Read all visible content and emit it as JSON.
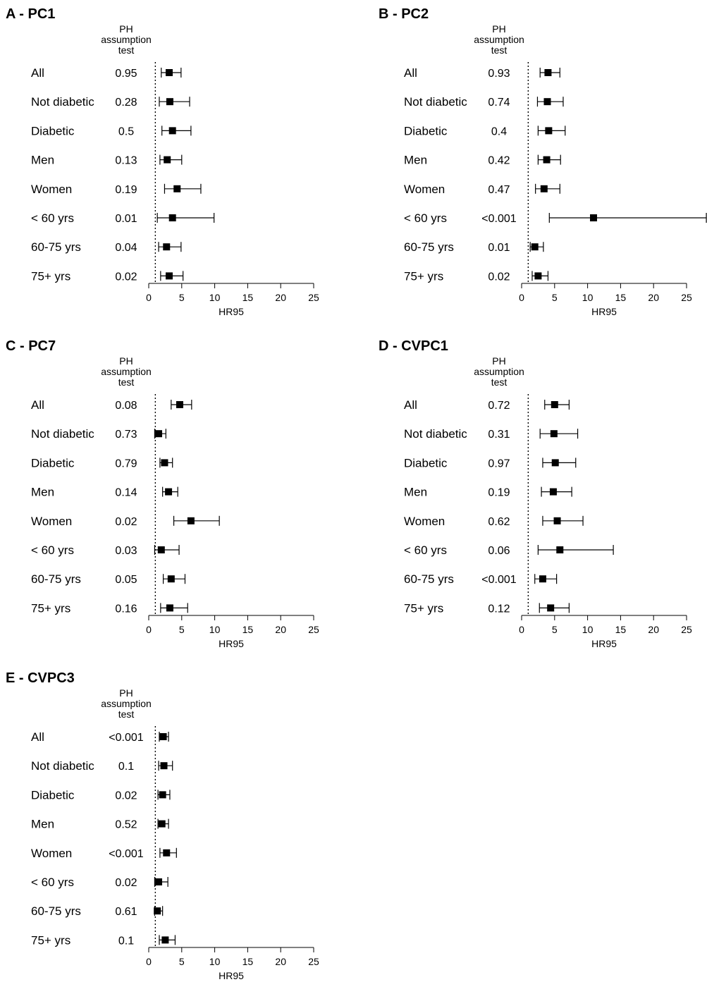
{
  "chart_data": [
    {
      "type": "forest",
      "title": "A - PC1",
      "pval_header": [
        "PH",
        "assumption",
        "test"
      ],
      "xlabel": "HR95",
      "xlim": [
        0,
        25
      ],
      "xticks": [
        0,
        5,
        10,
        15,
        20,
        25
      ],
      "ref_line": 1,
      "rows": [
        {
          "label": "All",
          "pval": "0.95",
          "hr": 3.1,
          "lo": 1.9,
          "hi": 4.9
        },
        {
          "label": "Not diabetic",
          "pval": "0.28",
          "hr": 3.2,
          "lo": 1.6,
          "hi": 6.2
        },
        {
          "label": "Diabetic",
          "pval": "0.5",
          "hr": 3.6,
          "lo": 2.0,
          "hi": 6.4
        },
        {
          "label": "Men",
          "pval": "0.13",
          "hr": 2.8,
          "lo": 1.7,
          "hi": 5.0
        },
        {
          "label": "Women",
          "pval": "0.19",
          "hr": 4.3,
          "lo": 2.4,
          "hi": 7.9
        },
        {
          "label": "< 60 yrs",
          "pval": "0.01",
          "hr": 3.6,
          "lo": 1.3,
          "hi": 9.9
        },
        {
          "label": "60-75 yrs",
          "pval": "0.04",
          "hr": 2.7,
          "lo": 1.5,
          "hi": 4.9
        },
        {
          "label": "75+ yrs",
          "pval": "0.02",
          "hr": 3.1,
          "lo": 1.8,
          "hi": 5.2
        }
      ]
    },
    {
      "type": "forest",
      "title": "B - PC2",
      "pval_header": [
        "PH",
        "assumption",
        "test"
      ],
      "xlabel": "HR95",
      "xlim": [
        0,
        25
      ],
      "xticks": [
        0,
        5,
        10,
        15,
        20,
        25
      ],
      "ref_line": 1,
      "rows": [
        {
          "label": "All",
          "pval": "0.93",
          "hr": 4.0,
          "lo": 2.8,
          "hi": 5.8
        },
        {
          "label": "Not diabetic",
          "pval": "0.74",
          "hr": 3.9,
          "lo": 2.4,
          "hi": 6.3
        },
        {
          "label": "Diabetic",
          "pval": "0.4",
          "hr": 4.1,
          "lo": 2.5,
          "hi": 6.6
        },
        {
          "label": "Men",
          "pval": "0.42",
          "hr": 3.8,
          "lo": 2.5,
          "hi": 5.9
        },
        {
          "label": "Women",
          "pval": "0.47",
          "hr": 3.4,
          "lo": 2.1,
          "hi": 5.8
        },
        {
          "label": "< 60 yrs",
          "pval": "<0.001",
          "hr": 10.9,
          "lo": 4.2,
          "hi": 28.0
        },
        {
          "label": "60-75 yrs",
          "pval": "0.01",
          "hr": 2.0,
          "lo": 1.3,
          "hi": 3.3
        },
        {
          "label": "75+ yrs",
          "pval": "0.02",
          "hr": 2.5,
          "lo": 1.6,
          "hi": 4.0
        }
      ]
    },
    {
      "type": "forest",
      "title": "C - PC7",
      "pval_header": [
        "PH",
        "assumption",
        "test"
      ],
      "xlabel": "HR95",
      "xlim": [
        0,
        25
      ],
      "xticks": [
        0,
        5,
        10,
        15,
        20,
        25
      ],
      "ref_line": 1,
      "rows": [
        {
          "label": "All",
          "pval": "0.08",
          "hr": 4.7,
          "lo": 3.4,
          "hi": 6.5
        },
        {
          "label": "Not diabetic",
          "pval": "0.73",
          "hr": 1.5,
          "lo": 0.9,
          "hi": 2.6
        },
        {
          "label": "Diabetic",
          "pval": "0.79",
          "hr": 2.4,
          "lo": 1.7,
          "hi": 3.6
        },
        {
          "label": "Men",
          "pval": "0.14",
          "hr": 3.0,
          "lo": 2.1,
          "hi": 4.4
        },
        {
          "label": "Women",
          "pval": "0.02",
          "hr": 6.4,
          "lo": 3.8,
          "hi": 10.7
        },
        {
          "label": "< 60 yrs",
          "pval": "0.03",
          "hr": 1.9,
          "lo": 0.9,
          "hi": 4.6
        },
        {
          "label": "60-75 yrs",
          "pval": "0.05",
          "hr": 3.4,
          "lo": 2.2,
          "hi": 5.5
        },
        {
          "label": "75+ yrs",
          "pval": "0.16",
          "hr": 3.2,
          "lo": 1.8,
          "hi": 5.9
        }
      ]
    },
    {
      "type": "forest",
      "title": "D - CVPC1",
      "pval_header": [
        "PH",
        "assumption",
        "test"
      ],
      "xlabel": "HR95",
      "xlim": [
        0,
        25
      ],
      "xticks": [
        0,
        5,
        10,
        15,
        20,
        25
      ],
      "ref_line": 1,
      "rows": [
        {
          "label": "All",
          "pval": "0.72",
          "hr": 5.0,
          "lo": 3.5,
          "hi": 7.2
        },
        {
          "label": "Not diabetic",
          "pval": "0.31",
          "hr": 4.9,
          "lo": 2.8,
          "hi": 8.5
        },
        {
          "label": "Diabetic",
          "pval": "0.97",
          "hr": 5.1,
          "lo": 3.2,
          "hi": 8.2
        },
        {
          "label": "Men",
          "pval": "0.19",
          "hr": 4.8,
          "lo": 3.0,
          "hi": 7.6
        },
        {
          "label": "Women",
          "pval": "0.62",
          "hr": 5.4,
          "lo": 3.2,
          "hi": 9.3
        },
        {
          "label": "< 60 yrs",
          "pval": "0.06",
          "hr": 5.8,
          "lo": 2.5,
          "hi": 13.9
        },
        {
          "label": "60-75 yrs",
          "pval": "<0.001",
          "hr": 3.2,
          "lo": 2.0,
          "hi": 5.3
        },
        {
          "label": "75+ yrs",
          "pval": "0.12",
          "hr": 4.4,
          "lo": 2.7,
          "hi": 7.2
        }
      ]
    },
    {
      "type": "forest",
      "title": "E - CVPC3",
      "pval_header": [
        "PH",
        "assumption",
        "test"
      ],
      "xlabel": "HR95",
      "xlim": [
        0,
        25
      ],
      "xticks": [
        0,
        5,
        10,
        15,
        20,
        25
      ],
      "ref_line": 1,
      "rows": [
        {
          "label": "All",
          "pval": "<0.001",
          "hr": 2.2,
          "lo": 1.6,
          "hi": 3.0
        },
        {
          "label": "Not diabetic",
          "pval": "0.1",
          "hr": 2.3,
          "lo": 1.5,
          "hi": 3.6
        },
        {
          "label": "Diabetic",
          "pval": "0.02",
          "hr": 2.1,
          "lo": 1.4,
          "hi": 3.2
        },
        {
          "label": "Men",
          "pval": "0.52",
          "hr": 2.0,
          "lo": 1.4,
          "hi": 3.0
        },
        {
          "label": "Women",
          "pval": "<0.001",
          "hr": 2.7,
          "lo": 1.7,
          "hi": 4.2
        },
        {
          "label": "< 60 yrs",
          "pval": "0.02",
          "hr": 1.5,
          "lo": 0.9,
          "hi": 2.9
        },
        {
          "label": "60-75 yrs",
          "pval": "0.61",
          "hr": 1.3,
          "lo": 0.9,
          "hi": 2.1
        },
        {
          "label": "75+ yrs",
          "pval": "0.1",
          "hr": 2.5,
          "lo": 1.6,
          "hi": 4.0
        }
      ]
    }
  ]
}
